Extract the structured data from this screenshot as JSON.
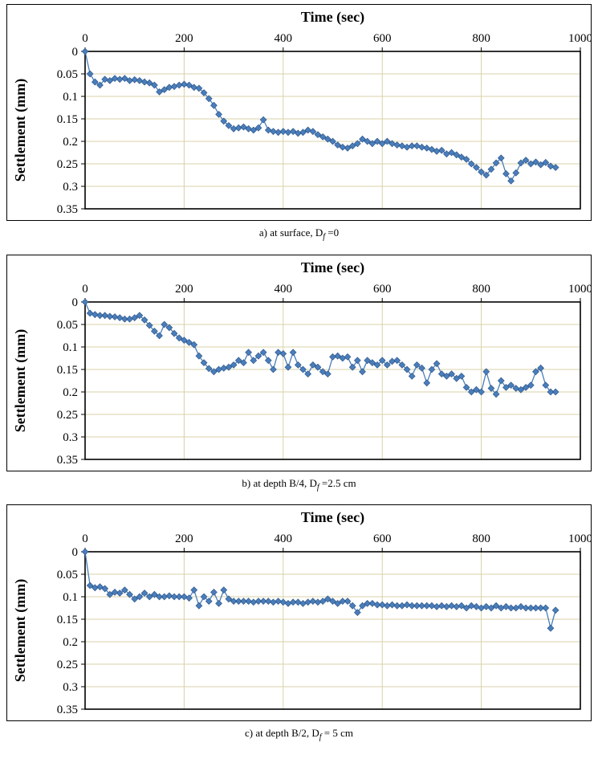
{
  "captions": [
    {
      "prefix": "a) at surface, D",
      "sub": "f",
      "suffix": " =0"
    },
    {
      "prefix": "b) at depth B/4, D",
      "sub": "f",
      "suffix": " =2.5 cm"
    },
    {
      "prefix": "c) at depth B/2, D",
      "sub": "f",
      "suffix": " = 5 cm"
    }
  ],
  "style": {
    "series_color": "#4A7EBB",
    "marker_edge_color": "#31598C",
    "gridline_color": "#D8D2A8",
    "axis_color": "#000000"
  },
  "chart_data": [
    {
      "type": "line",
      "title": "Time (sec)",
      "xlabel": "Time (sec)",
      "ylabel": "Settlement (mm)",
      "xlim": [
        0,
        1000
      ],
      "ylim": [
        0,
        0.35
      ],
      "y_axis_inverted": true,
      "grid": true,
      "legend": "none",
      "marker": "diamond",
      "xticks": [
        0,
        200,
        400,
        600,
        800,
        1000
      ],
      "xtick_labels": [
        "0",
        "200",
        "400",
        "600",
        "800",
        "1000"
      ],
      "yticks": [
        0,
        0.05,
        0.1,
        0.15,
        0.2,
        0.25,
        0.3,
        0.35
      ],
      "ytick_labels": [
        "0",
        "0.05",
        "0.1",
        "0.15",
        "0.2",
        "0.25",
        "0.3",
        "0.35"
      ],
      "x": [
        0,
        10,
        20,
        30,
        40,
        50,
        60,
        70,
        80,
        90,
        100,
        110,
        120,
        130,
        140,
        150,
        160,
        170,
        180,
        190,
        200,
        210,
        220,
        230,
        240,
        250,
        260,
        270,
        280,
        290,
        300,
        310,
        320,
        330,
        340,
        350,
        360,
        370,
        380,
        390,
        400,
        410,
        420,
        430,
        440,
        450,
        460,
        470,
        480,
        490,
        500,
        510,
        520,
        530,
        540,
        550,
        560,
        570,
        580,
        590,
        600,
        610,
        620,
        630,
        640,
        650,
        660,
        670,
        680,
        690,
        700,
        710,
        720,
        730,
        740,
        750,
        760,
        770,
        780,
        790,
        800,
        810,
        820,
        830,
        840,
        850,
        860,
        870,
        880,
        890,
        900,
        910,
        920,
        930,
        940,
        950
      ],
      "y": [
        0.0,
        0.05,
        0.068,
        0.075,
        0.062,
        0.065,
        0.06,
        0.062,
        0.06,
        0.065,
        0.063,
        0.065,
        0.068,
        0.07,
        0.075,
        0.09,
        0.085,
        0.08,
        0.078,
        0.075,
        0.073,
        0.075,
        0.08,
        0.082,
        0.092,
        0.105,
        0.12,
        0.14,
        0.155,
        0.165,
        0.172,
        0.17,
        0.168,
        0.172,
        0.175,
        0.17,
        0.152,
        0.175,
        0.178,
        0.18,
        0.178,
        0.18,
        0.178,
        0.182,
        0.18,
        0.175,
        0.178,
        0.185,
        0.19,
        0.195,
        0.2,
        0.208,
        0.213,
        0.215,
        0.21,
        0.205,
        0.195,
        0.2,
        0.205,
        0.2,
        0.205,
        0.2,
        0.205,
        0.208,
        0.21,
        0.213,
        0.21,
        0.21,
        0.213,
        0.215,
        0.218,
        0.222,
        0.22,
        0.228,
        0.225,
        0.23,
        0.235,
        0.24,
        0.25,
        0.258,
        0.268,
        0.275,
        0.262,
        0.248,
        0.237,
        0.272,
        0.288,
        0.27,
        0.248,
        0.242,
        0.25,
        0.246,
        0.252,
        0.247,
        0.255,
        0.258
      ]
    },
    {
      "type": "line",
      "title": "Time (sec)",
      "xlabel": "Time (sec)",
      "ylabel": "Settlement (mm)",
      "xlim": [
        0,
        1000
      ],
      "ylim": [
        0,
        0.35
      ],
      "y_axis_inverted": true,
      "grid": true,
      "legend": "none",
      "marker": "diamond",
      "xticks": [
        0,
        200,
        400,
        600,
        800,
        1000
      ],
      "xtick_labels": [
        "0",
        "200",
        "400",
        "600",
        "800",
        "1000"
      ],
      "yticks": [
        0,
        0.05,
        0.1,
        0.15,
        0.2,
        0.25,
        0.3,
        0.35
      ],
      "ytick_labels": [
        "0",
        "0.05",
        "0.1",
        "0.15",
        "0.2",
        "0.25",
        "0.3",
        "0.35"
      ],
      "x": [
        0,
        10,
        20,
        30,
        40,
        50,
        60,
        70,
        80,
        90,
        100,
        110,
        120,
        130,
        140,
        150,
        160,
        170,
        180,
        190,
        200,
        210,
        220,
        230,
        240,
        250,
        260,
        270,
        280,
        290,
        300,
        310,
        320,
        330,
        340,
        350,
        360,
        370,
        380,
        390,
        400,
        410,
        420,
        430,
        440,
        450,
        460,
        470,
        480,
        490,
        500,
        510,
        520,
        530,
        540,
        550,
        560,
        570,
        580,
        590,
        600,
        610,
        620,
        630,
        640,
        650,
        660,
        670,
        680,
        690,
        700,
        710,
        720,
        730,
        740,
        750,
        760,
        770,
        780,
        790,
        800,
        810,
        820,
        830,
        840,
        850,
        860,
        870,
        880,
        890,
        900,
        910,
        920,
        930,
        940,
        950
      ],
      "y": [
        0.0,
        0.025,
        0.028,
        0.03,
        0.03,
        0.032,
        0.033,
        0.035,
        0.038,
        0.038,
        0.035,
        0.03,
        0.04,
        0.052,
        0.065,
        0.075,
        0.05,
        0.057,
        0.07,
        0.08,
        0.085,
        0.09,
        0.095,
        0.12,
        0.135,
        0.148,
        0.155,
        0.15,
        0.147,
        0.145,
        0.14,
        0.13,
        0.135,
        0.112,
        0.13,
        0.12,
        0.112,
        0.13,
        0.15,
        0.112,
        0.115,
        0.145,
        0.112,
        0.14,
        0.15,
        0.16,
        0.14,
        0.145,
        0.155,
        0.16,
        0.122,
        0.12,
        0.125,
        0.122,
        0.145,
        0.13,
        0.155,
        0.13,
        0.135,
        0.14,
        0.13,
        0.14,
        0.132,
        0.13,
        0.14,
        0.15,
        0.165,
        0.14,
        0.147,
        0.18,
        0.15,
        0.137,
        0.16,
        0.165,
        0.16,
        0.17,
        0.165,
        0.19,
        0.2,
        0.195,
        0.2,
        0.155,
        0.192,
        0.205,
        0.175,
        0.19,
        0.185,
        0.192,
        0.195,
        0.19,
        0.185,
        0.155,
        0.147,
        0.185,
        0.2,
        0.2
      ]
    },
    {
      "type": "line",
      "title": "Time (sec)",
      "xlabel": "Time (sec)",
      "ylabel": "Settlement (mm)",
      "xlim": [
        0,
        1000
      ],
      "ylim": [
        0,
        0.35
      ],
      "y_axis_inverted": true,
      "grid": true,
      "legend": "none",
      "marker": "diamond",
      "xticks": [
        0,
        200,
        400,
        600,
        800,
        1000
      ],
      "xtick_labels": [
        "0",
        "200",
        "400",
        "600",
        "800",
        "1000"
      ],
      "yticks": [
        0,
        0.05,
        0.1,
        0.15,
        0.2,
        0.25,
        0.3,
        0.35
      ],
      "ytick_labels": [
        "0",
        "0.05",
        "0.1",
        "0.15",
        "0.2",
        "0.25",
        "0.3",
        "0.35"
      ],
      "x": [
        0,
        10,
        20,
        30,
        40,
        50,
        60,
        70,
        80,
        90,
        100,
        110,
        120,
        130,
        140,
        150,
        160,
        170,
        180,
        190,
        200,
        210,
        220,
        230,
        240,
        250,
        260,
        270,
        280,
        290,
        300,
        310,
        320,
        330,
        340,
        350,
        360,
        370,
        380,
        390,
        400,
        410,
        420,
        430,
        440,
        450,
        460,
        470,
        480,
        490,
        500,
        510,
        520,
        530,
        540,
        550,
        560,
        570,
        580,
        590,
        600,
        610,
        620,
        630,
        640,
        650,
        660,
        670,
        680,
        690,
        700,
        710,
        720,
        730,
        740,
        750,
        760,
        770,
        780,
        790,
        800,
        810,
        820,
        830,
        840,
        850,
        860,
        870,
        880,
        890,
        900,
        910,
        920,
        930,
        940,
        950
      ],
      "y": [
        0.0,
        0.075,
        0.08,
        0.078,
        0.082,
        0.095,
        0.09,
        0.092,
        0.085,
        0.095,
        0.105,
        0.1,
        0.092,
        0.1,
        0.095,
        0.1,
        0.1,
        0.098,
        0.1,
        0.1,
        0.1,
        0.103,
        0.085,
        0.12,
        0.1,
        0.11,
        0.09,
        0.115,
        0.085,
        0.105,
        0.11,
        0.11,
        0.11,
        0.11,
        0.112,
        0.11,
        0.11,
        0.11,
        0.112,
        0.11,
        0.112,
        0.115,
        0.112,
        0.112,
        0.115,
        0.112,
        0.11,
        0.112,
        0.11,
        0.105,
        0.11,
        0.115,
        0.11,
        0.11,
        0.12,
        0.135,
        0.12,
        0.115,
        0.115,
        0.118,
        0.118,
        0.12,
        0.118,
        0.12,
        0.12,
        0.118,
        0.12,
        0.12,
        0.12,
        0.12,
        0.12,
        0.122,
        0.12,
        0.122,
        0.12,
        0.122,
        0.12,
        0.125,
        0.12,
        0.122,
        0.125,
        0.122,
        0.125,
        0.12,
        0.125,
        0.122,
        0.125,
        0.125,
        0.122,
        0.125,
        0.125,
        0.125,
        0.125,
        0.125,
        0.17,
        0.13
      ]
    }
  ]
}
